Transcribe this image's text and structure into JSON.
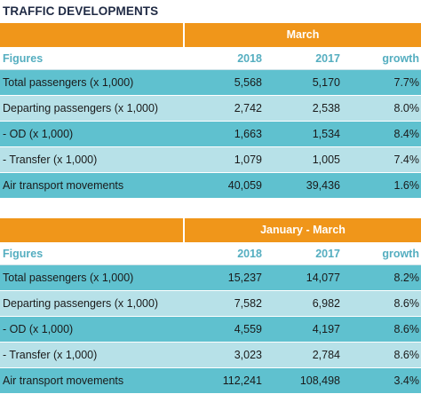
{
  "title": "TRAFFIC DEVELOPMENTS",
  "tables": [
    {
      "period": "March",
      "columns": [
        "Figures",
        "2018",
        "2017",
        "growth"
      ],
      "rows": [
        {
          "label": "Total passengers (x 1,000)",
          "y2018": "5,568",
          "y2017": "5,170",
          "growth": "7.7%"
        },
        {
          "label": "Departing passengers (x 1,000)",
          "y2018": "2,742",
          "y2017": "2,538",
          "growth": "8.0%"
        },
        {
          "label": "- OD (x 1,000)",
          "y2018": "1,663",
          "y2017": "1,534",
          "growth": "8.4%"
        },
        {
          "label": "- Transfer  (x 1,000)",
          "y2018": "1,079",
          "y2017": "1,005",
          "growth": "7.4%"
        },
        {
          "label": "Air transport movements",
          "y2018": "40,059",
          "y2017": "39,436",
          "growth": "1.6%"
        }
      ]
    },
    {
      "period": "January - March",
      "columns": [
        "Figures",
        "2018",
        "2017",
        "growth"
      ],
      "rows": [
        {
          "label": "Total passengers (x 1,000)",
          "y2018": "15,237",
          "y2017": "14,077",
          "growth": "8.2%"
        },
        {
          "label": "Departing passengers (x 1,000)",
          "y2018": "7,582",
          "y2017": "6,982",
          "growth": "8.6%"
        },
        {
          "label": "- OD (x 1,000)",
          "y2018": "4,559",
          "y2017": "4,197",
          "growth": "8.6%"
        },
        {
          "label": "- Transfer  (x 1,000)",
          "y2018": "3,023",
          "y2017": "2,784",
          "growth": "8.6%"
        },
        {
          "label": "Air transport movements",
          "y2018": "112,241",
          "y2017": "108,498",
          "growth": "3.4%"
        }
      ]
    }
  ],
  "colors": {
    "header_orange": "#f0961a",
    "row_dark": "#5fc1cf",
    "row_light": "#b7e1e8",
    "subheader_text": "#55aec0",
    "title_text": "#1f2a44"
  }
}
